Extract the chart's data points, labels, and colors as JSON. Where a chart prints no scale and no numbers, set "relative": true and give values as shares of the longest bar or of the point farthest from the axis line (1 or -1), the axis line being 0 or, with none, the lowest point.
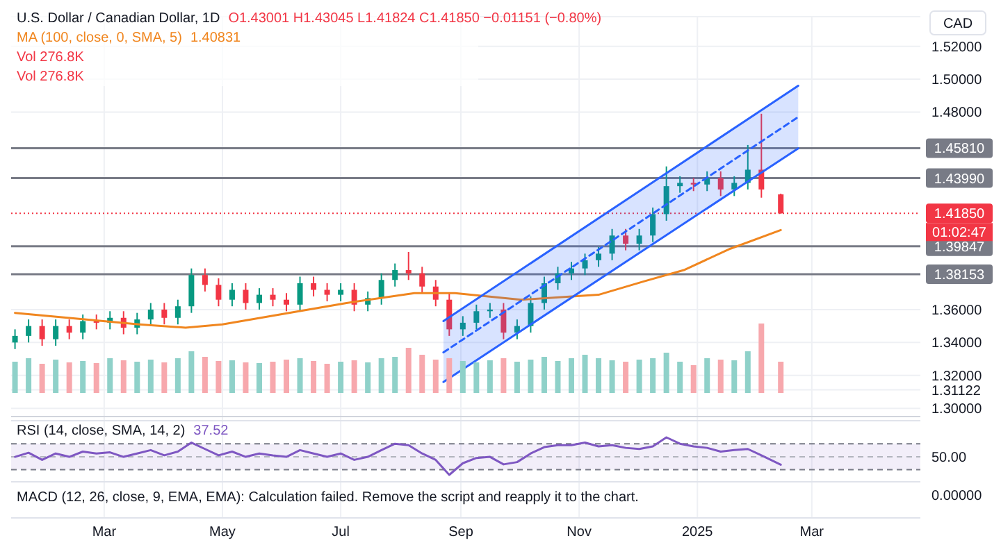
{
  "chart_data": [
    {
      "type": "candlestick",
      "title": "U.S. Dollar / Canadian Dollar, 1D",
      "ylabel": "CAD",
      "legend": "top left",
      "grid": true,
      "x": [
        "2024-01-15",
        "2024-01-22",
        "2024-01-29",
        "2024-02-05",
        "2024-02-12",
        "2024-02-19",
        "2024-02-26",
        "2024-03-04",
        "2024-03-11",
        "2024-03-18",
        "2024-03-25",
        "2024-04-01",
        "2024-04-08",
        "2024-04-15",
        "2024-04-22",
        "2024-04-29",
        "2024-05-06",
        "2024-05-13",
        "2024-05-20",
        "2024-05-27",
        "2024-06-03",
        "2024-06-10",
        "2024-06-17",
        "2024-06-24",
        "2024-07-01",
        "2024-07-08",
        "2024-07-15",
        "2024-07-22",
        "2024-07-29",
        "2024-08-05",
        "2024-08-12",
        "2024-08-19",
        "2024-08-26",
        "2024-09-02",
        "2024-09-09",
        "2024-09-16",
        "2024-09-23",
        "2024-09-30",
        "2024-10-07",
        "2024-10-14",
        "2024-10-21",
        "2024-10-28",
        "2024-11-04",
        "2024-11-11",
        "2024-11-18",
        "2024-11-25",
        "2024-12-02",
        "2024-12-09",
        "2024-12-16",
        "2024-12-23",
        "2024-12-30",
        "2025-01-06",
        "2025-01-13",
        "2025-01-20",
        "2025-01-27",
        "2025-02-03",
        "2025-02-13"
      ],
      "xlim": [
        "2024-01-13",
        "2025-04-26"
      ],
      "xticks": [
        {
          "value": "2024-03-01",
          "label": "Mar"
        },
        {
          "value": "2024-05-01",
          "label": "May"
        },
        {
          "value": "2024-07-01",
          "label": "Jul"
        },
        {
          "value": "2024-09-01",
          "label": "Sep"
        },
        {
          "value": "2024-11-01",
          "label": "Nov"
        },
        {
          "value": "2025-01-01",
          "label": "2025"
        },
        {
          "value": "2025-03-01",
          "label": "Mar"
        }
      ],
      "ylim": [
        1.295,
        1.538
      ],
      "yticks": [
        {
          "value": 1.52,
          "label": "1.52000"
        },
        {
          "value": 1.5,
          "label": "1.50000"
        },
        {
          "value": 1.48,
          "label": "1.48000"
        },
        {
          "value": 1.36,
          "label": "1.36000"
        },
        {
          "value": 1.34,
          "label": "1.34000"
        },
        {
          "value": 1.32,
          "label": "1.32000"
        },
        1.31122,
        {
          "value": 1.3,
          "label": "1.30000"
        }
      ],
      "annotations": [
        "O1.43001  H1.43045  L1.41824  C1.41850  −0.01151 (−0.80%)",
        "1.40831",
        "01:02:47"
      ],
      "ref_lines": [
        {
          "axis": "y",
          "value": 1.4581,
          "label": "1.45810",
          "color": "#787b86"
        },
        {
          "axis": "y",
          "value": 1.4399,
          "label": "1.43990",
          "color": "#787b86"
        },
        {
          "axis": "y",
          "value": 1.39847,
          "label": "1.39847",
          "color": "#787b86"
        },
        {
          "axis": "y",
          "value": 1.38153,
          "label": "1.38153",
          "color": "#787b86"
        },
        {
          "axis": "y",
          "value": 1.4185,
          "label": "1.41850",
          "color": "#f23645",
          "line_style": "dotted"
        }
      ],
      "series": [
        {
          "type": "candlestick",
          "ohlc": [
            [
              1.34,
              1.348,
              1.336,
              1.344
            ],
            [
              1.344,
              1.354,
              1.34,
              1.35
            ],
            [
              1.35,
              1.354,
              1.338,
              1.342
            ],
            [
              1.342,
              1.354,
              1.338,
              1.35
            ],
            [
              1.35,
              1.354,
              1.342,
              1.346
            ],
            [
              1.346,
              1.357,
              1.342,
              1.353
            ],
            [
              1.353,
              1.357,
              1.348,
              1.352
            ],
            [
              1.352,
              1.359,
              1.348,
              1.355
            ],
            [
              1.355,
              1.359,
              1.345,
              1.349
            ],
            [
              1.349,
              1.358,
              1.345,
              1.354
            ],
            [
              1.354,
              1.364,
              1.35,
              1.36
            ],
            [
              1.36,
              1.364,
              1.351,
              1.355
            ],
            [
              1.355,
              1.366,
              1.351,
              1.362
            ],
            [
              1.362,
              1.385,
              1.358,
              1.381
            ],
            [
              1.381,
              1.385,
              1.371,
              1.375
            ],
            [
              1.375,
              1.379,
              1.362,
              1.366
            ],
            [
              1.366,
              1.376,
              1.362,
              1.372
            ],
            [
              1.372,
              1.376,
              1.36,
              1.364
            ],
            [
              1.364,
              1.373,
              1.36,
              1.369
            ],
            [
              1.369,
              1.373,
              1.362,
              1.366
            ],
            [
              1.366,
              1.37,
              1.359,
              1.363
            ],
            [
              1.363,
              1.38,
              1.359,
              1.376
            ],
            [
              1.376,
              1.38,
              1.368,
              1.372
            ],
            [
              1.372,
              1.376,
              1.365,
              1.369
            ],
            [
              1.369,
              1.376,
              1.365,
              1.372
            ],
            [
              1.372,
              1.376,
              1.359,
              1.363
            ],
            [
              1.363,
              1.371,
              1.359,
              1.367
            ],
            [
              1.367,
              1.382,
              1.363,
              1.378
            ],
            [
              1.378,
              1.388,
              1.374,
              1.384
            ],
            [
              1.384,
              1.395,
              1.378,
              1.382
            ],
            [
              1.382,
              1.386,
              1.37,
              1.374
            ],
            [
              1.374,
              1.378,
              1.362,
              1.366
            ],
            [
              1.366,
              1.37,
              1.344,
              1.348
            ],
            [
              1.348,
              1.356,
              1.344,
              1.352
            ],
            [
              1.352,
              1.363,
              1.348,
              1.359
            ],
            [
              1.359,
              1.364,
              1.355,
              1.36
            ],
            [
              1.36,
              1.364,
              1.342,
              1.346
            ],
            [
              1.346,
              1.354,
              1.342,
              1.35
            ],
            [
              1.35,
              1.368,
              1.346,
              1.364
            ],
            [
              1.364,
              1.38,
              1.36,
              1.376
            ],
            [
              1.376,
              1.386,
              1.372,
              1.382
            ],
            [
              1.382,
              1.389,
              1.378,
              1.385
            ],
            [
              1.385,
              1.394,
              1.381,
              1.39
            ],
            [
              1.39,
              1.398,
              1.386,
              1.394
            ],
            [
              1.394,
              1.409,
              1.39,
              1.405
            ],
            [
              1.405,
              1.409,
              1.396,
              1.4
            ],
            [
              1.4,
              1.409,
              1.396,
              1.405
            ],
            [
              1.405,
              1.422,
              1.401,
              1.418
            ],
            [
              1.418,
              1.447,
              1.414,
              1.435
            ],
            [
              1.435,
              1.441,
              1.431,
              1.437
            ],
            [
              1.437,
              1.44,
              1.432,
              1.436
            ],
            [
              1.436,
              1.444,
              1.432,
              1.44
            ],
            [
              1.44,
              1.444,
              1.429,
              1.433
            ],
            [
              1.433,
              1.441,
              1.429,
              1.437
            ],
            [
              1.437,
              1.46,
              1.433,
              1.445
            ],
            [
              1.445,
              1.479,
              1.428,
              1.433
            ],
            [
              1.43001,
              1.43045,
              1.41824,
              1.4185
            ]
          ],
          "colors": [
            "#089981",
            "#089981",
            "#f23645",
            "#089981",
            "#f23645",
            "#089981",
            "#f23645",
            "#089981",
            "#f23645",
            "#089981",
            "#089981",
            "#f23645",
            "#089981",
            "#089981",
            "#f23645",
            "#f23645",
            "#089981",
            "#f23645",
            "#089981",
            "#f23645",
            "#f23645",
            "#089981",
            "#f23645",
            "#f23645",
            "#089981",
            "#f23645",
            "#089981",
            "#089981",
            "#089981",
            "#f23645",
            "#f23645",
            "#f23645",
            "#f23645",
            "#089981",
            "#089981",
            "#089981",
            "#f23645",
            "#089981",
            "#089981",
            "#089981",
            "#089981",
            "#089981",
            "#089981",
            "#089981",
            "#089981",
            "#f23645",
            "#089981",
            "#089981",
            "#089981",
            "#089981",
            "#f23645",
            "#089981",
            "#f23645",
            "#089981",
            "#089981",
            "#f23645",
            "#f23645"
          ]
        },
        {
          "type": "line",
          "name": "MA (100, close, 0, SMA, 5)",
          "color": "#f0861f",
          "x": [
            "2024-01-15",
            "2024-03-19",
            "2024-04-12",
            "2024-05-01",
            "2024-07-04",
            "2024-08-08",
            "2024-08-29",
            "2024-10-02",
            "2024-11-11",
            "2024-12-04",
            "2024-12-25",
            "2025-01-18",
            "2025-02-13"
          ],
          "values": [
            1.358,
            1.351,
            1.349,
            1.351,
            1.364,
            1.37,
            1.37,
            1.366,
            1.369,
            1.377,
            1.384,
            1.397,
            1.40831
          ]
        },
        {
          "type": "line",
          "color": "#2962ff",
          "line_style": "dashed",
          "x": [
            "2024-08-23",
            "2025-02-22"
          ],
          "values": [
            1.334,
            1.477
          ],
          "lower": [
            1.316,
            1.458
          ],
          "upper": [
            1.353,
            1.496
          ]
        },
        {
          "type": "line",
          "color": "#2962ff",
          "x": [
            "2024-08-23",
            "2025-02-22"
          ],
          "values": [
            1.316,
            1.458
          ]
        },
        {
          "type": "line",
          "color": "#2962ff",
          "x": [
            "2024-08-23",
            "2025-02-22"
          ],
          "values": [
            1.353,
            1.496
          ]
        }
      ]
    },
    {
      "type": "bar",
      "relative": true,
      "x": [
        "2024-01-15",
        "2024-01-22",
        "2024-01-29",
        "2024-02-05",
        "2024-02-12",
        "2024-02-19",
        "2024-02-26",
        "2024-03-04",
        "2024-03-11",
        "2024-03-18",
        "2024-03-25",
        "2024-04-01",
        "2024-04-08",
        "2024-04-15",
        "2024-04-22",
        "2024-04-29",
        "2024-05-06",
        "2024-05-13",
        "2024-05-20",
        "2024-05-27",
        "2024-06-03",
        "2024-06-10",
        "2024-06-17",
        "2024-06-24",
        "2024-07-01",
        "2024-07-08",
        "2024-07-15",
        "2024-07-22",
        "2024-07-29",
        "2024-08-05",
        "2024-08-12",
        "2024-08-19",
        "2024-08-26",
        "2024-09-02",
        "2024-09-09",
        "2024-09-16",
        "2024-09-23",
        "2024-09-30",
        "2024-10-07",
        "2024-10-14",
        "2024-10-21",
        "2024-10-28",
        "2024-11-04",
        "2024-11-11",
        "2024-11-18",
        "2024-11-25",
        "2024-12-02",
        "2024-12-09",
        "2024-12-16",
        "2024-12-23",
        "2024-12-30",
        "2025-01-06",
        "2025-01-13",
        "2025-01-20",
        "2025-01-27",
        "2025-02-03",
        "2025-02-13"
      ],
      "xlim": [
        "2024-01-13",
        "2025-04-26"
      ],
      "values": [
        0.45,
        0.5,
        0.42,
        0.48,
        0.44,
        0.46,
        0.43,
        0.5,
        0.47,
        0.45,
        0.48,
        0.44,
        0.5,
        0.6,
        0.52,
        0.46,
        0.47,
        0.44,
        0.43,
        0.45,
        0.48,
        0.5,
        0.46,
        0.42,
        0.45,
        0.47,
        0.44,
        0.5,
        0.52,
        0.65,
        0.55,
        0.48,
        0.5,
        0.46,
        0.44,
        0.47,
        0.5,
        0.45,
        0.48,
        0.52,
        0.46,
        0.5,
        0.55,
        0.5,
        0.47,
        0.45,
        0.48,
        0.5,
        0.58,
        0.45,
        0.4,
        0.5,
        0.48,
        0.47,
        0.6,
        1,
        0.45
      ],
      "colors": [
        "#8fd1c9",
        "#8fd1c9",
        "#f7a8ad",
        "#8fd1c9",
        "#f7a8ad",
        "#8fd1c9",
        "#f7a8ad",
        "#8fd1c9",
        "#f7a8ad",
        "#8fd1c9",
        "#8fd1c9",
        "#f7a8ad",
        "#8fd1c9",
        "#8fd1c9",
        "#f7a8ad",
        "#f7a8ad",
        "#8fd1c9",
        "#f7a8ad",
        "#8fd1c9",
        "#f7a8ad",
        "#f7a8ad",
        "#8fd1c9",
        "#f7a8ad",
        "#f7a8ad",
        "#8fd1c9",
        "#f7a8ad",
        "#8fd1c9",
        "#8fd1c9",
        "#8fd1c9",
        "#f7a8ad",
        "#f7a8ad",
        "#f7a8ad",
        "#f7a8ad",
        "#8fd1c9",
        "#8fd1c9",
        "#8fd1c9",
        "#f7a8ad",
        "#8fd1c9",
        "#8fd1c9",
        "#8fd1c9",
        "#8fd1c9",
        "#8fd1c9",
        "#8fd1c9",
        "#8fd1c9",
        "#8fd1c9",
        "#f7a8ad",
        "#8fd1c9",
        "#8fd1c9",
        "#8fd1c9",
        "#8fd1c9",
        "#f7a8ad",
        "#8fd1c9",
        "#f7a8ad",
        "#8fd1c9",
        "#8fd1c9",
        "#f7a8ad",
        "#f7a8ad"
      ],
      "annotations": [
        "Vol 276.8K",
        "Vol 276.8K"
      ]
    },
    {
      "type": "line",
      "legend": "top left",
      "relative": true,
      "x": [
        "2024-01-15",
        "2024-01-22",
        "2024-01-29",
        "2024-02-05",
        "2024-02-12",
        "2024-02-19",
        "2024-02-26",
        "2024-03-04",
        "2024-03-11",
        "2024-03-18",
        "2024-03-25",
        "2024-04-01",
        "2024-04-08",
        "2024-04-15",
        "2024-04-22",
        "2024-04-29",
        "2024-05-06",
        "2024-05-13",
        "2024-05-20",
        "2024-05-27",
        "2024-06-03",
        "2024-06-10",
        "2024-06-17",
        "2024-06-24",
        "2024-07-01",
        "2024-07-08",
        "2024-07-15",
        "2024-07-22",
        "2024-07-29",
        "2024-08-05",
        "2024-08-12",
        "2024-08-19",
        "2024-08-26",
        "2024-09-02",
        "2024-09-09",
        "2024-09-16",
        "2024-09-23",
        "2024-09-30",
        "2024-10-07",
        "2024-10-14",
        "2024-10-21",
        "2024-10-28",
        "2024-11-04",
        "2024-11-11",
        "2024-11-18",
        "2024-11-25",
        "2024-12-02",
        "2024-12-09",
        "2024-12-16",
        "2024-12-23",
        "2024-12-30",
        "2025-01-06",
        "2025-01-13",
        "2025-01-20",
        "2025-01-27",
        "2025-02-03",
        "2025-02-13"
      ],
      "xlim": [
        "2024-01-13",
        "2025-04-26"
      ],
      "series": [
        {
          "name": "RSI (14, close, SMA, 14, 2)",
          "color": "#7e57c2",
          "values": [
            0.48,
            0.59,
            0.4,
            0.57,
            0.48,
            0.62,
            0.57,
            0.6,
            0.48,
            0.57,
            0.66,
            0.52,
            0.62,
            0.86,
            0.69,
            0.52,
            0.62,
            0.48,
            0.57,
            0.52,
            0.48,
            0.66,
            0.57,
            0.48,
            0.57,
            0.4,
            0.48,
            0.66,
            0.83,
            0.79,
            0.57,
            0.4,
            0,
            0.31,
            0.45,
            0.48,
            0.28,
            0.34,
            0.57,
            0.74,
            0.79,
            0.79,
            0.86,
            0.76,
            0.79,
            0.72,
            0.69,
            0.76,
            1,
            0.83,
            0.76,
            0.72,
            0.62,
            0.66,
            0.69,
            0.52,
            0.27
          ]
        }
      ],
      "ref_lines": [
        {
          "axis": "y",
          "value": 0.83,
          "color": "#787b86",
          "line_style": "dashed"
        },
        {
          "axis": "y",
          "value": 0.48,
          "color": "#b2b5be",
          "line_style": "dashed"
        },
        {
          "axis": "y",
          "value": 0.14,
          "color": "#787b86",
          "line_style": "dashed"
        }
      ],
      "bands": [
        {
          "axis": "y",
          "from": 0.14,
          "to": 0.83,
          "color": "#7e57c2"
        }
      ],
      "annotations": [
        "37.52",
        "50.00"
      ]
    },
    {
      "type": "other",
      "annotations": [
        "MACD (12, 26, close, 9, EMA, EMA): Calculation failed. Remove the script and reapply it to the chart.",
        "0.00000"
      ]
    }
  ]
}
